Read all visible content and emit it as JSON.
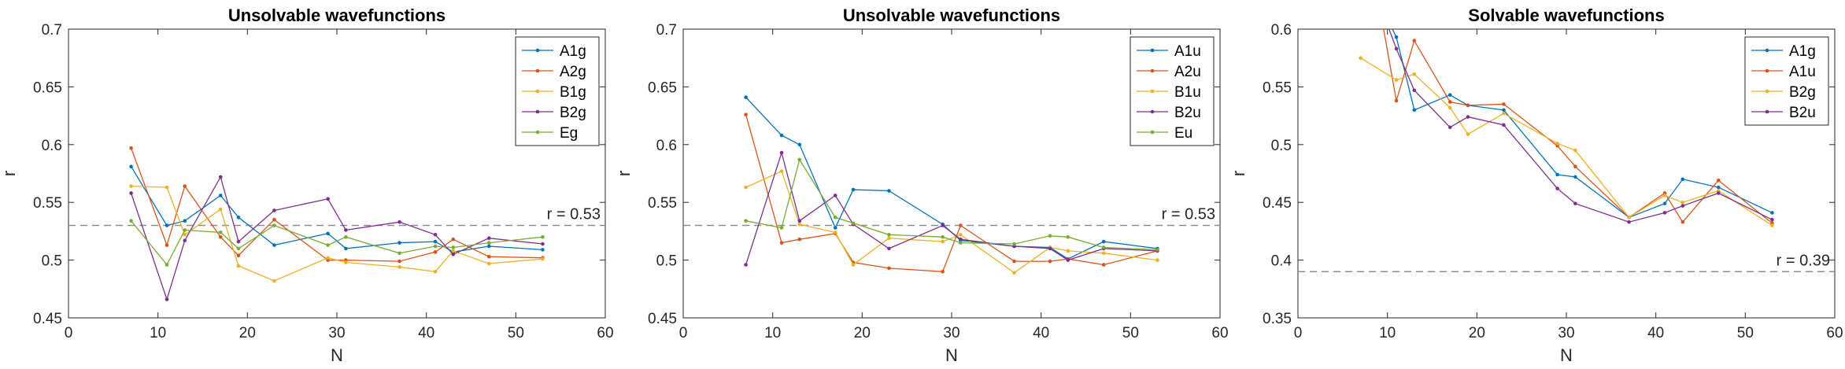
{
  "chart_data": [
    {
      "type": "line",
      "title": "Unsolvable wavefunctions",
      "xlabel": "N",
      "ylabel": "r",
      "xlim": [
        0,
        60
      ],
      "ylim": [
        0.45,
        0.7
      ],
      "xticks": [
        "0",
        "10",
        "20",
        "30",
        "40",
        "50",
        "60"
      ],
      "yticks": [
        "0.45",
        "0.5",
        "0.55",
        "0.6",
        "0.65",
        "0.7"
      ],
      "grid": false,
      "legend": "top-right",
      "reference_line": {
        "value": 0.53,
        "label": "r = 0.53"
      },
      "series": [
        {
          "name": "A1g",
          "color": "#0072bd",
          "x": [
            7,
            11,
            13,
            17,
            19,
            23,
            29,
            31,
            37,
            41,
            43,
            47,
            53
          ],
          "y": [
            0.581,
            0.53,
            0.534,
            0.556,
            0.537,
            0.513,
            0.523,
            0.51,
            0.515,
            0.516,
            0.507,
            0.512,
            0.509
          ]
        },
        {
          "name": "A2g",
          "color": "#d95319",
          "x": [
            7,
            11,
            13,
            17,
            19,
            23,
            29,
            31,
            37,
            41,
            43,
            47,
            53
          ],
          "y": [
            0.597,
            0.513,
            0.564,
            0.52,
            0.504,
            0.535,
            0.5,
            0.5,
            0.499,
            0.507,
            0.518,
            0.503,
            0.502
          ]
        },
        {
          "name": "B1g",
          "color": "#edb120",
          "x": [
            7,
            11,
            13,
            17,
            19,
            23,
            29,
            31,
            37,
            41,
            43,
            47,
            53
          ],
          "y": [
            0.564,
            0.563,
            0.522,
            0.544,
            0.495,
            0.482,
            0.502,
            0.498,
            0.494,
            0.49,
            0.508,
            0.497,
            0.501
          ]
        },
        {
          "name": "B2g",
          "color": "#7e2f8e",
          "x": [
            7,
            11,
            13,
            17,
            19,
            23,
            29,
            31,
            37,
            41,
            43,
            47,
            53
          ],
          "y": [
            0.558,
            0.466,
            0.517,
            0.572,
            0.516,
            0.543,
            0.553,
            0.526,
            0.533,
            0.522,
            0.505,
            0.519,
            0.514
          ]
        },
        {
          "name": "Eg",
          "color": "#77ac30",
          "x": [
            7,
            11,
            13,
            17,
            19,
            23,
            29,
            31,
            37,
            41,
            43,
            47,
            53
          ],
          "y": [
            0.534,
            0.496,
            0.526,
            0.524,
            0.51,
            0.53,
            0.513,
            0.52,
            0.506,
            0.512,
            0.511,
            0.515,
            0.52
          ]
        }
      ]
    },
    {
      "type": "line",
      "title": "Unsolvable wavefunctions",
      "xlabel": "N",
      "ylabel": "r",
      "xlim": [
        0,
        60
      ],
      "ylim": [
        0.45,
        0.7
      ],
      "xticks": [
        "0",
        "10",
        "20",
        "30",
        "40",
        "50",
        "60"
      ],
      "yticks": [
        "0.45",
        "0.5",
        "0.55",
        "0.6",
        "0.65",
        "0.7"
      ],
      "grid": false,
      "legend": "top-right",
      "reference_line": {
        "value": 0.53,
        "label": "r = 0.53"
      },
      "series": [
        {
          "name": "A1u",
          "color": "#0072bd",
          "x": [
            7,
            11,
            13,
            17,
            19,
            23,
            29,
            31,
            37,
            41,
            43,
            47,
            53
          ],
          "y": [
            0.641,
            0.608,
            0.6,
            0.528,
            0.561,
            0.56,
            0.531,
            0.517,
            0.512,
            0.511,
            0.501,
            0.516,
            0.51
          ]
        },
        {
          "name": "A2u",
          "color": "#d95319",
          "x": [
            7,
            11,
            13,
            17,
            19,
            23,
            29,
            31,
            37,
            41,
            43,
            47,
            53
          ],
          "y": [
            0.626,
            0.515,
            0.518,
            0.523,
            0.498,
            0.493,
            0.49,
            0.53,
            0.499,
            0.499,
            0.501,
            0.496,
            0.508
          ]
        },
        {
          "name": "B1u",
          "color": "#edb120",
          "x": [
            7,
            11,
            13,
            17,
            19,
            23,
            29,
            31,
            37,
            41,
            43,
            47,
            53
          ],
          "y": [
            0.563,
            0.577,
            0.531,
            0.524,
            0.496,
            0.519,
            0.516,
            0.522,
            0.489,
            0.511,
            0.508,
            0.506,
            0.5
          ]
        },
        {
          "name": "B2u",
          "color": "#7e2f8e",
          "x": [
            7,
            11,
            13,
            17,
            19,
            23,
            29,
            31,
            37,
            41,
            43,
            47,
            53
          ],
          "y": [
            0.496,
            0.593,
            0.534,
            0.556,
            0.531,
            0.51,
            0.53,
            0.518,
            0.512,
            0.51,
            0.5,
            0.51,
            0.508
          ]
        },
        {
          "name": "Eu",
          "color": "#77ac30",
          "x": [
            7,
            11,
            13,
            17,
            19,
            23,
            29,
            31,
            37,
            41,
            43,
            47,
            53
          ],
          "y": [
            0.534,
            0.528,
            0.587,
            0.537,
            0.532,
            0.522,
            0.52,
            0.515,
            0.514,
            0.521,
            0.52,
            0.511,
            0.509
          ]
        }
      ]
    },
    {
      "type": "line",
      "title": "Solvable wavefunctions",
      "xlabel": "N",
      "ylabel": "r",
      "xlim": [
        0,
        60
      ],
      "ylim": [
        0.35,
        0.6
      ],
      "xticks": [
        "0",
        "10",
        "20",
        "30",
        "40",
        "50",
        "60"
      ],
      "yticks": [
        "0.35",
        "0.4",
        "0.45",
        "0.5",
        "0.55",
        "0.6"
      ],
      "grid": false,
      "legend": "top-right",
      "reference_line": {
        "value": 0.39,
        "label": "r = 0.39"
      },
      "series": [
        {
          "name": "A1g",
          "color": "#0072bd",
          "x": [
            9,
            11,
            13,
            17,
            19,
            23,
            29,
            31,
            37,
            41,
            43,
            47,
            53
          ],
          "y": [
            0.625,
            0.593,
            0.53,
            0.543,
            0.534,
            0.53,
            0.474,
            0.472,
            0.437,
            0.449,
            0.47,
            0.463,
            0.441
          ]
        },
        {
          "name": "A1u",
          "color": "#d95319",
          "x": [
            9,
            11,
            13,
            17,
            19,
            23,
            29,
            31,
            37,
            41,
            43,
            47,
            53
          ],
          "y": [
            0.625,
            0.538,
            0.59,
            0.537,
            0.534,
            0.535,
            0.499,
            0.481,
            0.437,
            0.458,
            0.433,
            0.469,
            0.432
          ]
        },
        {
          "name": "B2g",
          "color": "#edb120",
          "x": [
            7,
            11,
            13,
            17,
            19,
            23,
            29,
            31,
            37,
            41,
            43,
            47,
            53
          ],
          "y": [
            0.575,
            0.556,
            0.561,
            0.532,
            0.509,
            0.527,
            0.501,
            0.495,
            0.437,
            0.456,
            0.45,
            0.46,
            0.43
          ]
        },
        {
          "name": "B2u",
          "color": "#7e2f8e",
          "x": [
            9,
            11,
            13,
            17,
            19,
            23,
            29,
            31,
            37,
            41,
            43,
            47,
            53
          ],
          "y": [
            0.625,
            0.583,
            0.547,
            0.515,
            0.524,
            0.517,
            0.462,
            0.449,
            0.433,
            0.441,
            0.447,
            0.458,
            0.435
          ]
        }
      ]
    }
  ]
}
